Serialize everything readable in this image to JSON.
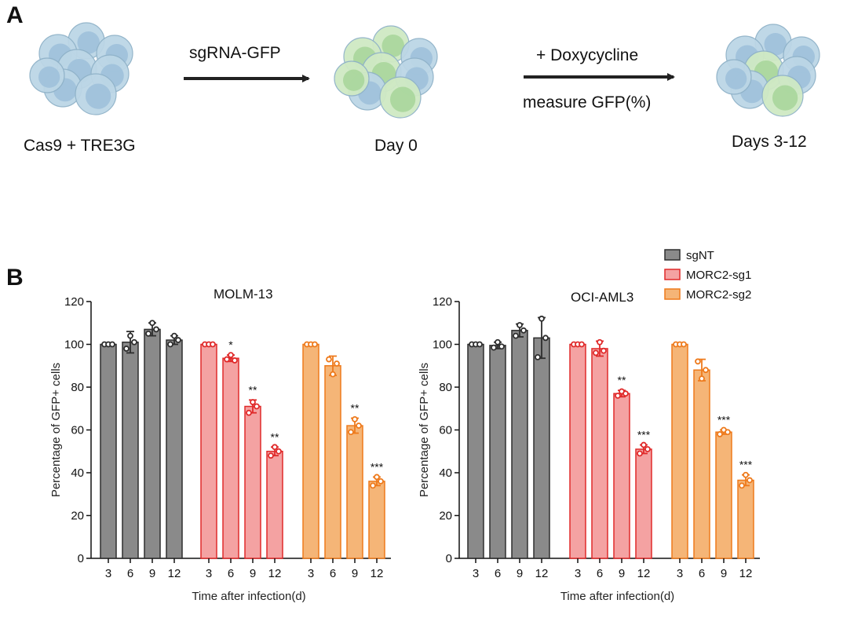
{
  "panel_a": {
    "letter": "A",
    "start_label": "Cas9 + TRE3G",
    "arrow1_label": "sgRNA-GFP",
    "mid_label": "Day 0",
    "arrow2_label_top": "+ Doxycycline",
    "arrow2_label_bottom": "measure GFP(%)",
    "end_label": "Days 3-12"
  },
  "panel_b": {
    "letter": "B"
  },
  "colors": {
    "sgNT": "#8a8a8a",
    "sgNT_stroke": "#2e2e2e",
    "MORC2-sg1": "#f4a2a2",
    "MORC2-sg1_stroke": "#e02a2a",
    "MORC2-sg2": "#f5b577",
    "MORC2-sg2_stroke": "#ee7a1c",
    "cell_blue_fill": "#bcd6e6",
    "cell_blue_nucleus": "#9fc1da",
    "cell_green_fill": "#cfe9c4",
    "cell_green_nucleus": "#a9d69b"
  },
  "chart_data": [
    {
      "type": "bar",
      "title": "MOLM-13",
      "xlabel": "Time after infection(d)",
      "ylabel": "Percentage of GFP+ cells",
      "ylim": [
        0,
        120
      ],
      "yticks": [
        0,
        20,
        40,
        60,
        80,
        100,
        120
      ],
      "categories": [
        "3",
        "6",
        "9",
        "12"
      ],
      "legend": [
        "sgNT",
        "MORC2-sg1",
        "MORC2-sg2"
      ],
      "series": [
        {
          "name": "sgNT",
          "values": [
            100,
            101,
            107,
            102
          ],
          "err": [
            0,
            5,
            3,
            2
          ],
          "points": [
            [
              100,
              100,
              100
            ],
            [
              98,
              104,
              101
            ],
            [
              105,
              110,
              107
            ],
            [
              100,
              104,
              102
            ]
          ],
          "sig": [
            "",
            "",
            "",
            ""
          ]
        },
        {
          "name": "MORC2-sg1",
          "values": [
            100,
            93.5,
            71,
            50
          ],
          "err": [
            0,
            1.5,
            3,
            2
          ],
          "points": [
            [
              100,
              100,
              100
            ],
            [
              93,
              95,
              92.5
            ],
            [
              68,
              73,
              71
            ],
            [
              48,
              52,
              50
            ]
          ],
          "sig": [
            "",
            "*",
            "**",
            "**"
          ]
        },
        {
          "name": "MORC2-sg2",
          "values": [
            100,
            90,
            62,
            36
          ],
          "err": [
            0,
            4.5,
            3.5,
            2
          ],
          "points": [
            [
              100,
              100,
              100
            ],
            [
              93,
              86,
              91
            ],
            [
              59,
              65,
              62
            ],
            [
              34,
              38,
              36
            ]
          ],
          "sig": [
            "",
            "",
            "**",
            "***"
          ]
        }
      ]
    },
    {
      "type": "bar",
      "title": "OCI-AML3",
      "xlabel": "Time after infection(d)",
      "ylabel": "Percentage of GFP+ cells",
      "ylim": [
        0,
        120
      ],
      "yticks": [
        0,
        20,
        40,
        60,
        80,
        100,
        120
      ],
      "categories": [
        "3",
        "6",
        "9",
        "12"
      ],
      "legend": [
        "sgNT",
        "MORC2-sg1",
        "MORC2-sg2"
      ],
      "series": [
        {
          "name": "sgNT",
          "values": [
            100,
            99.5,
            106.5,
            103
          ],
          "err": [
            0,
            1.5,
            3,
            9.5
          ],
          "points": [
            [
              100,
              100,
              100
            ],
            [
              98.5,
              101,
              99
            ],
            [
              104,
              109,
              106.5
            ],
            [
              94,
              112,
              103
            ]
          ],
          "sig": [
            "",
            "",
            "",
            ""
          ]
        },
        {
          "name": "MORC2-sg1",
          "values": [
            100,
            98,
            77,
            51
          ],
          "err": [
            0,
            3.5,
            1.5,
            2
          ],
          "points": [
            [
              100,
              100,
              100
            ],
            [
              96,
              101,
              97
            ],
            [
              76,
              78,
              77
            ],
            [
              49,
              53,
              51
            ]
          ],
          "sig": [
            "",
            "",
            "**",
            "***"
          ]
        },
        {
          "name": "MORC2-sg2",
          "values": [
            100,
            88,
            59,
            36.5
          ],
          "err": [
            0,
            5,
            1,
            2.5
          ],
          "points": [
            [
              100,
              100,
              100
            ],
            [
              92,
              84,
              88
            ],
            [
              58,
              60,
              59
            ],
            [
              34,
              39,
              36.5
            ]
          ],
          "sig": [
            "",
            "",
            "***",
            "***"
          ]
        }
      ]
    }
  ]
}
